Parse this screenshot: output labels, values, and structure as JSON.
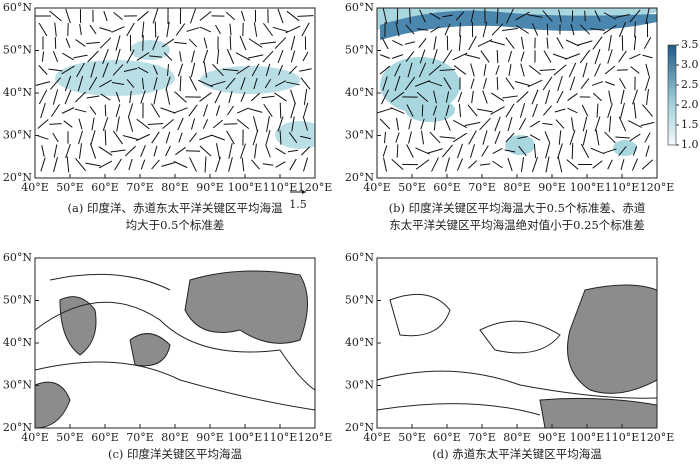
{
  "lat_labels": [
    "60°N",
    "50°N",
    "40°N",
    "30°N",
    "20°N"
  ],
  "lon_labels": [
    "40°E",
    "50°E",
    "60°E",
    "70°E",
    "80°E",
    "90°E",
    "100°E",
    "110°E",
    "120°E"
  ],
  "reference_vector": "1.5",
  "colorbar": [
    "3.5",
    "3.0",
    "2.5",
    "2.0",
    "1.5",
    "1.0"
  ],
  "panels": [
    {
      "caption": [
        "(a) 印度洋、赤道东太平洋关键区平均海温",
        "均大于0.5个标准差"
      ]
    },
    {
      "caption": [
        "(b) 印度洋关键区平均海温大于0.5个标准差、赤道",
        "东太平洋关键区平均海温绝对值小于0.25个标准差"
      ]
    },
    {
      "caption": [
        "(c) 印度洋关键区平均海温"
      ]
    },
    {
      "caption": [
        "(d) 赤道东太平洋关键区平均海温"
      ]
    }
  ]
}
